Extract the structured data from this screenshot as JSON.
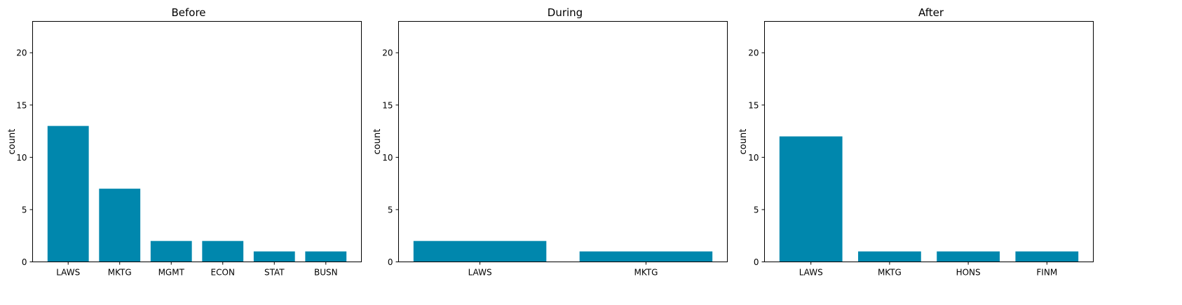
{
  "chart_data": [
    {
      "type": "bar",
      "title": "Before",
      "xlabel": "",
      "ylabel": "count",
      "ylim": [
        0,
        23
      ],
      "yticks": [
        0,
        5,
        10,
        15,
        20
      ],
      "categories": [
        "LAWS",
        "MKTG",
        "MGMT",
        "ECON",
        "STAT",
        "BUSN"
      ],
      "values": [
        13,
        7,
        2,
        2,
        1,
        1
      ],
      "bar_color": "#0087ad"
    },
    {
      "type": "bar",
      "title": "During",
      "xlabel": "",
      "ylabel": "count",
      "ylim": [
        0,
        23
      ],
      "yticks": [
        0,
        5,
        10,
        15,
        20
      ],
      "categories": [
        "LAWS",
        "MKTG"
      ],
      "values": [
        2,
        1
      ],
      "bar_color": "#0087ad"
    },
    {
      "type": "bar",
      "title": "After",
      "xlabel": "",
      "ylabel": "count",
      "ylim": [
        0,
        23
      ],
      "yticks": [
        0,
        5,
        10,
        15,
        20
      ],
      "categories": [
        "LAWS",
        "MKTG",
        "HONS",
        "FINM"
      ],
      "values": [
        12,
        1,
        1,
        1
      ],
      "bar_color": "#0087ad"
    }
  ]
}
